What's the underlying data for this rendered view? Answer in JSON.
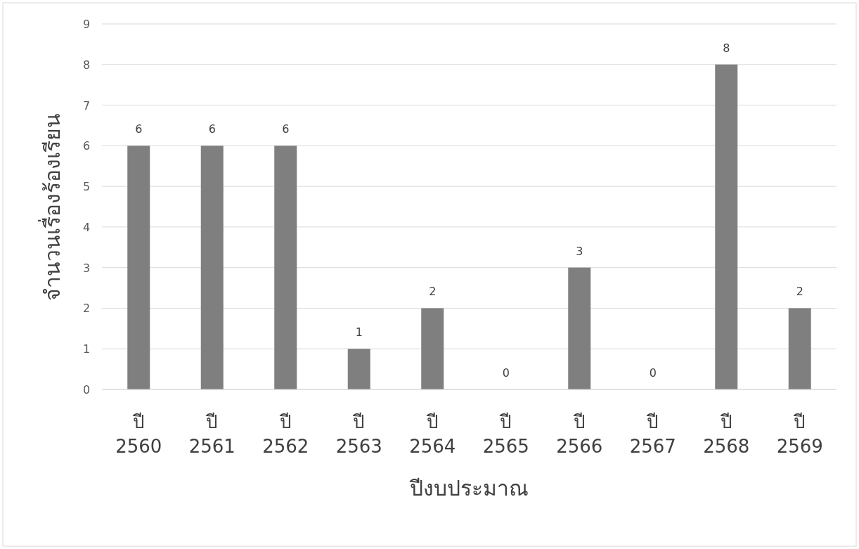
{
  "chart_data": {
    "type": "bar",
    "xlabel": "ปีงบประมาณ",
    "ylabel": "จำนวนเรื่องร้องเรียน",
    "categories": [
      "ปี 2560",
      "ปี 2561",
      "ปี 2562",
      "ปี 2563",
      "ปี 2564",
      "ปี 2565",
      "ปี 2566",
      "ปี 2567",
      "ปี 2568",
      "ปี 2569"
    ],
    "values": [
      6,
      6,
      6,
      1,
      2,
      0,
      3,
      0,
      8,
      2
    ],
    "color": "#7f7f7f",
    "ylim": [
      0,
      9
    ],
    "yticks": [
      0,
      1,
      2,
      3,
      4,
      5,
      6,
      7,
      8,
      9
    ],
    "grid": "y",
    "data_labels": true
  }
}
